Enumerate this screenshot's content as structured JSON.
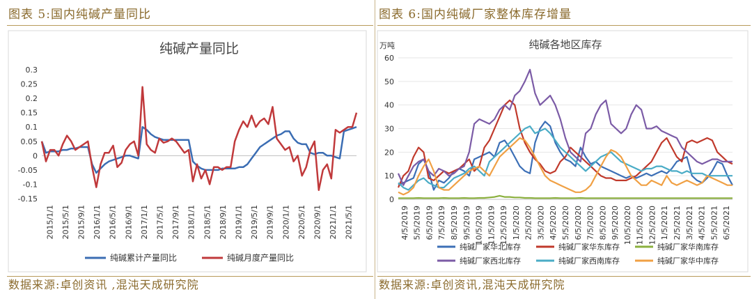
{
  "left_panel": {
    "heading": "图表 5:国内纯碱产量同比",
    "source": "数据来源:卓创资讯 ,混沌天成研究院"
  },
  "right_panel": {
    "heading": "图表 6:国内纯碱厂家整体库存增量",
    "source": "数据来源:卓创资讯,混沌天成研究院"
  },
  "chart_data": [
    {
      "type": "line",
      "title": "纯碱产量同比",
      "ylim": [
        -0.15,
        0.3
      ],
      "yticks": [
        "0.3",
        "0.25",
        "0.2",
        "0.15",
        "0.1",
        "0.05",
        "0",
        "-0.05",
        "-0.1",
        "-0.15"
      ],
      "xticks": [
        "2015/1/1",
        "2015/5/1",
        "2015/9/1",
        "2016/1/1",
        "2016/5/1",
        "2016/9/1",
        "2017/1/1",
        "2017/5/1",
        "2017/9/1",
        "2018/1/1",
        "2018/5/1",
        "2018/9/1",
        "2019/1/1",
        "2019/5/1",
        "2019/9/1",
        "2020/1/1",
        "2020/5/1",
        "2020/9/1",
        "2021/1/1",
        "2021/5/1"
      ],
      "legend_position": "bottom",
      "series": [
        {
          "name": "纯碱累计产量同比",
          "color": "#3b6db3",
          "values": [
            0.05,
            0.01,
            0.015,
            0.015,
            0.015,
            0.02,
            0.02,
            0.025,
            0.025,
            0.03,
            0.03,
            0.03,
            -0.03,
            -0.06,
            -0.045,
            -0.03,
            -0.02,
            -0.015,
            -0.01,
            -0.005,
            0,
            0,
            -0.005,
            -0.01,
            0.1,
            0.09,
            0.075,
            0.065,
            0.06,
            0.055,
            0.055,
            0.055,
            0.055,
            0.055,
            0.055,
            0.055,
            -0.02,
            -0.035,
            -0.045,
            -0.05,
            -0.05,
            -0.05,
            -0.05,
            -0.045,
            -0.045,
            -0.045,
            -0.045,
            -0.04,
            -0.04,
            -0.03,
            -0.01,
            0.01,
            0.03,
            0.04,
            0.05,
            0.06,
            0.07,
            0.075,
            0.085,
            0.085,
            0.06,
            0.045,
            0.04,
            0.04,
            0.01,
            0.005,
            0.01,
            0.01,
            0,
            0,
            -0.005,
            -0.01,
            0.085,
            0.09,
            0.095,
            0.1
          ]
        },
        {
          "name": "纯碱月度产量同比",
          "color": "#c0393b",
          "values": [
            0.05,
            -0.02,
            0.02,
            0.02,
            0,
            0.04,
            0.07,
            0.05,
            0.02,
            0.03,
            0.04,
            0.05,
            -0.04,
            -0.11,
            -0.03,
            0.01,
            0.01,
            0.035,
            -0.04,
            -0.025,
            0.02,
            0.04,
            0.05,
            0,
            0.24,
            0.04,
            0.02,
            0.01,
            0.06,
            0.045,
            0.05,
            0.06,
            0.05,
            0.03,
            0.01,
            0.02,
            -0.09,
            -0.03,
            -0.08,
            -0.05,
            -0.1,
            -0.04,
            -0.04,
            -0.05,
            -0.04,
            -0.04,
            0.05,
            0.09,
            0.12,
            0.1,
            0.14,
            0.1,
            0.12,
            0.13,
            0.11,
            0.17,
            0.06,
            0.04,
            0.02,
            0.03,
            -0.02,
            0,
            -0.07,
            -0.04,
            0.02,
            0.05,
            -0.12,
            -0.05,
            -0.03,
            -0.08,
            0.09,
            0.08,
            0.09,
            0.1,
            0.1,
            0.15
          ]
        }
      ]
    },
    {
      "type": "line",
      "title": "纯碱各地区库存",
      "yunit": "万吨",
      "ylim": [
        0,
        60
      ],
      "yticks": [
        "60",
        "50",
        "40",
        "30",
        "20",
        "10",
        "0"
      ],
      "xticks": [
        "4/5/2019",
        "5/5/2019",
        "6/5/2019",
        "7/5/2019",
        "8/5/2019",
        "9/5/2019",
        "10/5/2019",
        "11/5/2019",
        "12/5/2019",
        "1/5/2020",
        "2/5/2020",
        "3/5/2020",
        "4/5/2020",
        "5/5/2020",
        "6/5/2020",
        "7/5/2020",
        "8/5/2020",
        "9/5/2020",
        "10/5/2020",
        "11/5/2020",
        "12/5/2020",
        "1/5/2021",
        "2/5/2021",
        "3/5/2021",
        "4/5/2021",
        "5/5/2021",
        "6/5/2021"
      ],
      "legend_position": "bottom",
      "series": [
        {
          "name": "纯碱厂家华北库存",
          "color": "#3c6fb6",
          "values": [
            6,
            7,
            8,
            9,
            15,
            17,
            12,
            4,
            8,
            7,
            9,
            12,
            13,
            12,
            10,
            17,
            18,
            19,
            20,
            18,
            24,
            25,
            22,
            18,
            14,
            12,
            11,
            24,
            30,
            33,
            31,
            24,
            20,
            17,
            16,
            14,
            22,
            18,
            15,
            16,
            14,
            13,
            12,
            11,
            10,
            9,
            10,
            9,
            10,
            11,
            10,
            11,
            12,
            11,
            13,
            16,
            17,
            18,
            10,
            8,
            7,
            9,
            12,
            16,
            15,
            10,
            6
          ]
        },
        {
          "name": "纯碱厂家华东库存",
          "color": "#c0392b",
          "values": [
            5,
            10,
            12,
            18,
            22,
            20,
            9,
            8,
            10,
            12,
            11,
            12,
            13,
            15,
            17,
            12,
            14,
            22,
            25,
            30,
            35,
            40,
            42,
            40,
            30,
            24,
            20,
            17,
            15,
            12,
            11,
            12,
            16,
            18,
            22,
            20,
            18,
            16,
            14,
            12,
            10,
            9,
            9,
            8,
            8,
            8,
            9,
            10,
            12,
            14,
            16,
            20,
            24,
            26,
            22,
            18,
            16,
            24,
            25,
            24,
            25,
            26,
            25,
            20,
            18,
            16,
            15
          ]
        },
        {
          "name": "纯碱厂家华南库存",
          "color": "#8bb03e",
          "values": [
            0.5,
            0.5,
            0.5,
            0.5,
            0.6,
            0.5,
            0.5,
            0.5,
            0.5,
            0.6,
            0.5,
            0.5,
            0.5,
            0.6,
            0.5,
            0.5,
            0.6,
            0.6,
            0.8,
            1,
            1.5,
            1,
            1,
            0.8,
            0.8,
            0.6,
            0.6,
            0.5,
            0.5,
            0.5,
            0.5,
            0.6,
            0.5,
            0.5,
            0.5,
            0.5,
            0.6,
            0.5,
            0.5,
            0.5,
            0.5,
            0.5,
            0.5,
            0.5,
            0.5,
            0.5,
            0.5,
            0.5,
            0.5,
            0.5,
            0.5,
            0.5,
            0.5,
            0.5,
            0.5,
            0.5,
            0.5,
            0.5,
            0.5,
            0.5,
            0.5,
            0.5,
            0.5,
            0.5,
            0.5,
            0.5,
            0.5
          ]
        },
        {
          "name": "纯碱厂家西北库存",
          "color": "#7b5ba6",
          "values": [
            11,
            6,
            10,
            14,
            16,
            17,
            12,
            10,
            13,
            12,
            10,
            11,
            13,
            14,
            20,
            32,
            34,
            33,
            32,
            34,
            38,
            40,
            38,
            44,
            46,
            50,
            55,
            45,
            40,
            42,
            44,
            40,
            34,
            26,
            20,
            18,
            16,
            28,
            30,
            36,
            40,
            42,
            32,
            30,
            28,
            30,
            36,
            40,
            38,
            30,
            30,
            31,
            29,
            28,
            27,
            26,
            22,
            20,
            18,
            16,
            15,
            16,
            17,
            17,
            16,
            16,
            16
          ]
        },
        {
          "name": "纯碱厂家西南库存",
          "color": "#4aacc6",
          "values": [
            7,
            5,
            4,
            6,
            8,
            9,
            7,
            6,
            5,
            5,
            7,
            9,
            10,
            11,
            13,
            14,
            12,
            10,
            16,
            18,
            20,
            22,
            24,
            26,
            28,
            30,
            31,
            28,
            29,
            30,
            28,
            25,
            22,
            20,
            18,
            16,
            14,
            12,
            14,
            16,
            18,
            19,
            20,
            18,
            16,
            15,
            14,
            13,
            12,
            13,
            13,
            14,
            14,
            13,
            12,
            12,
            11,
            12,
            11,
            11,
            11,
            10,
            10,
            10,
            10,
            10,
            10
          ]
        },
        {
          "name": "纯碱厂家华中库存",
          "color": "#f0a044",
          "values": [
            3,
            2,
            3,
            5,
            10,
            14,
            17,
            12,
            5,
            4,
            4,
            6,
            8,
            10,
            12,
            13,
            14,
            12,
            10,
            14,
            18,
            20,
            22,
            24,
            26,
            25,
            22,
            18,
            14,
            10,
            8,
            7,
            6,
            5,
            4,
            3,
            3,
            4,
            6,
            10,
            14,
            18,
            21,
            20,
            18,
            14,
            10,
            8,
            6,
            6,
            8,
            7,
            6,
            10,
            7,
            6,
            7,
            8,
            7,
            6,
            7,
            10,
            9,
            8,
            7,
            6,
            6
          ]
        }
      ]
    }
  ]
}
